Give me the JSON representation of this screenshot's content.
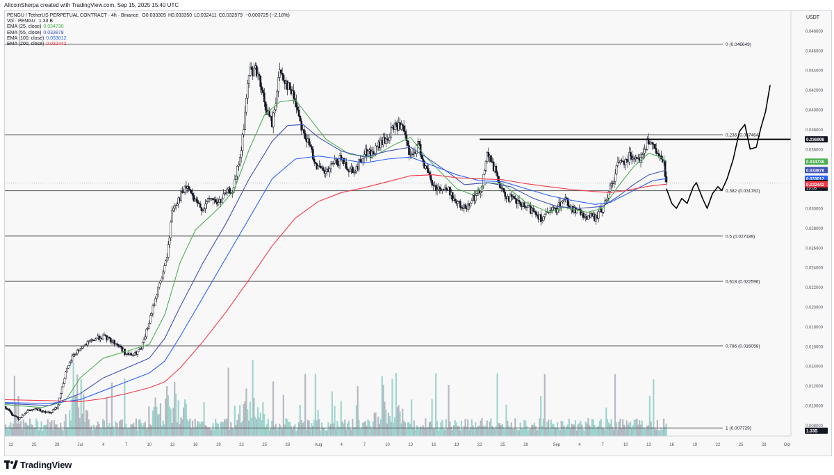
{
  "byline": "AltcoinSherpa created with TradingView.com, Sep 15, 2025 15:40 UTC",
  "footer": {
    "brand": "TradingView"
  },
  "legend": {
    "symbol_line": "PENGU / TetherUS PERPETUAL CONTRACT · 4h · Binance",
    "ohlc": [
      {
        "key": "O",
        "value": "0.033305"
      },
      {
        "key": "H",
        "value": "0.033350"
      },
      {
        "key": "L",
        "value": "0.032411"
      },
      {
        "key": "C",
        "value": "0.032579"
      },
      {
        "key": "",
        "value": "−0.000725 (−2.18%)"
      }
    ],
    "vol": {
      "label": "Vol · PENGU",
      "value": "1.33 B"
    },
    "emas": [
      {
        "label": "EMA (25, close)",
        "value": "0.034738",
        "color": "#4caf50"
      },
      {
        "label": "EMA (55, close)",
        "value": "0.033878",
        "color": "#3f51b5"
      },
      {
        "label": "EMA (100, close)",
        "value": "0.033012",
        "color": "#2962ff"
      },
      {
        "label": "EMA (200, close)",
        "value": "0.032442",
        "color": "#f23645"
      }
    ]
  },
  "chart_data": {
    "type": "candlestick",
    "currency": "USDT",
    "ylim": [
      0.0069,
      0.05
    ],
    "y_ticks": [
      "0.048000",
      "0.046000",
      "0.044000",
      "0.042000",
      "0.040000",
      "0.038000",
      "0.036000",
      "0.034000",
      "0.032000",
      "0.030000",
      "0.028000",
      "0.026000",
      "0.024000",
      "0.022000",
      "0.020000",
      "0.018000",
      "0.016000",
      "0.014000",
      "0.012000",
      "0.010000",
      "0.008000"
    ],
    "x_ticks": [
      {
        "label": "22",
        "day": -9
      },
      {
        "label": "25",
        "day": -6
      },
      {
        "label": "28",
        "day": -3
      },
      {
        "label": "Jul",
        "day": 0
      },
      {
        "label": "4",
        "day": 3
      },
      {
        "label": "7",
        "day": 6
      },
      {
        "label": "10",
        "day": 9
      },
      {
        "label": "13",
        "day": 12
      },
      {
        "label": "16",
        "day": 15
      },
      {
        "label": "19",
        "day": 18
      },
      {
        "label": "22",
        "day": 21
      },
      {
        "label": "25",
        "day": 24
      },
      {
        "label": "28",
        "day": 27
      },
      {
        "label": "Aug",
        "day": 31
      },
      {
        "label": "4",
        "day": 34
      },
      {
        "label": "7",
        "day": 37
      },
      {
        "label": "10",
        "day": 40
      },
      {
        "label": "13",
        "day": 43
      },
      {
        "label": "16",
        "day": 46
      },
      {
        "label": "19",
        "day": 49
      },
      {
        "label": "22",
        "day": 52
      },
      {
        "label": "25",
        "day": 55
      },
      {
        "label": "28",
        "day": 58
      },
      {
        "label": "Sep",
        "day": 62
      },
      {
        "label": "4",
        "day": 65
      },
      {
        "label": "7",
        "day": 68
      },
      {
        "label": "10",
        "day": 71
      },
      {
        "label": "13",
        "day": 74
      },
      {
        "label": "16",
        "day": 77
      },
      {
        "label": "19",
        "day": 80
      },
      {
        "label": "22",
        "day": 83
      },
      {
        "label": "25",
        "day": 86
      },
      {
        "label": "28",
        "day": 89
      },
      {
        "label": "Oct",
        "day": 92
      }
    ],
    "x_range_days": [
      -9.8,
      92.5
    ],
    "last_day": 76.3,
    "close_path": [
      [
        -9.8,
        0.0099
      ],
      [
        -9,
        0.0092
      ],
      [
        -8,
        0.0087
      ],
      [
        -7,
        0.0094
      ],
      [
        -6,
        0.0096
      ],
      [
        -5,
        0.0095
      ],
      [
        -4,
        0.0093
      ],
      [
        -3,
        0.0098
      ],
      [
        -2,
        0.013
      ],
      [
        -1,
        0.015
      ],
      [
        0,
        0.0158
      ],
      [
        1,
        0.0163
      ],
      [
        2,
        0.0168
      ],
      [
        3,
        0.017
      ],
      [
        4,
        0.0166
      ],
      [
        5,
        0.0161
      ],
      [
        6,
        0.0152
      ],
      [
        7,
        0.0151
      ],
      [
        8,
        0.0158
      ],
      [
        9,
        0.0185
      ],
      [
        10,
        0.0215
      ],
      [
        11,
        0.024
      ],
      [
        11.5,
        0.0262
      ],
      [
        12,
        0.03
      ],
      [
        13,
        0.0312
      ],
      [
        14,
        0.0322
      ],
      [
        15,
        0.0305
      ],
      [
        16,
        0.03
      ],
      [
        17,
        0.031
      ],
      [
        18,
        0.0305
      ],
      [
        19,
        0.0315
      ],
      [
        20,
        0.032
      ],
      [
        21,
        0.036
      ],
      [
        22,
        0.044
      ],
      [
        23,
        0.044
      ],
      [
        24,
        0.0405
      ],
      [
        25,
        0.0385
      ],
      [
        26,
        0.044
      ],
      [
        27,
        0.0425
      ],
      [
        28,
        0.041
      ],
      [
        29,
        0.0378
      ],
      [
        30,
        0.036
      ],
      [
        31,
        0.034
      ],
      [
        32,
        0.0335
      ],
      [
        33,
        0.0345
      ],
      [
        34,
        0.035
      ],
      [
        35,
        0.034
      ],
      [
        36,
        0.034
      ],
      [
        37,
        0.0357
      ],
      [
        38,
        0.0355
      ],
      [
        39,
        0.0365
      ],
      [
        40,
        0.037
      ],
      [
        41,
        0.0385
      ],
      [
        42,
        0.038
      ],
      [
        43,
        0.035
      ],
      [
        44,
        0.0365
      ],
      [
        45,
        0.034
      ],
      [
        46,
        0.0322
      ],
      [
        47,
        0.032
      ],
      [
        48,
        0.0318
      ],
      [
        49,
        0.0305
      ],
      [
        50,
        0.03
      ],
      [
        51,
        0.031
      ],
      [
        52,
        0.0315
      ],
      [
        53,
        0.0355
      ],
      [
        54,
        0.0338
      ],
      [
        55,
        0.0315
      ],
      [
        56,
        0.031
      ],
      [
        57,
        0.0305
      ],
      [
        58,
        0.03
      ],
      [
        59,
        0.0298
      ],
      [
        60,
        0.029
      ],
      [
        61,
        0.0295
      ],
      [
        62,
        0.03
      ],
      [
        63,
        0.031
      ],
      [
        64,
        0.03
      ],
      [
        65,
        0.0295
      ],
      [
        66,
        0.0292
      ],
      [
        67,
        0.029
      ],
      [
        68,
        0.03
      ],
      [
        69,
        0.032
      ],
      [
        70,
        0.0345
      ],
      [
        71,
        0.035
      ],
      [
        72,
        0.0355
      ],
      [
        73,
        0.035
      ],
      [
        74,
        0.037
      ],
      [
        75,
        0.0355
      ],
      [
        76,
        0.0345
      ],
      [
        76.3,
        0.03258
      ]
    ],
    "series": [
      {
        "name": "EMA (25, close)",
        "last": 0.034738,
        "color": "#4caf50",
        "points": [
          [
            -9.8,
            0.0101
          ],
          [
            -5,
            0.0098
          ],
          [
            -2,
            0.0104
          ],
          [
            0,
            0.0128
          ],
          [
            3,
            0.0148
          ],
          [
            6,
            0.0155
          ],
          [
            9,
            0.0162
          ],
          [
            11,
            0.0192
          ],
          [
            13,
            0.0245
          ],
          [
            15,
            0.0278
          ],
          [
            18,
            0.03
          ],
          [
            20,
            0.0318
          ],
          [
            22,
            0.036
          ],
          [
            24,
            0.0395
          ],
          [
            26,
            0.0408
          ],
          [
            28,
            0.041
          ],
          [
            30,
            0.039
          ],
          [
            32,
            0.037
          ],
          [
            35,
            0.0355
          ],
          [
            38,
            0.0352
          ],
          [
            41,
            0.0365
          ],
          [
            43,
            0.0372
          ],
          [
            45,
            0.0352
          ],
          [
            47,
            0.0336
          ],
          [
            49,
            0.032
          ],
          [
            51,
            0.0314
          ],
          [
            53,
            0.0326
          ],
          [
            55,
            0.0325
          ],
          [
            58,
            0.0306
          ],
          [
            61,
            0.0296
          ],
          [
            63,
            0.0301
          ],
          [
            66,
            0.0296
          ],
          [
            68,
            0.03
          ],
          [
            70,
            0.0322
          ],
          [
            72,
            0.0342
          ],
          [
            74,
            0.0356
          ],
          [
            75.5,
            0.0352
          ],
          [
            76.3,
            0.034738
          ]
        ]
      },
      {
        "name": "EMA (55, close)",
        "last": 0.033878,
        "color": "#3f51b5",
        "points": [
          [
            -9.8,
            0.0102
          ],
          [
            -4,
            0.01
          ],
          [
            0,
            0.0112
          ],
          [
            3,
            0.0128
          ],
          [
            6,
            0.0138
          ],
          [
            9,
            0.0148
          ],
          [
            11,
            0.0168
          ],
          [
            13,
            0.02
          ],
          [
            16,
            0.0245
          ],
          [
            19,
            0.0285
          ],
          [
            22,
            0.033
          ],
          [
            25,
            0.0368
          ],
          [
            27,
            0.0384
          ],
          [
            29,
            0.0385
          ],
          [
            31,
            0.0372
          ],
          [
            34,
            0.0358
          ],
          [
            37,
            0.0352
          ],
          [
            40,
            0.0358
          ],
          [
            43,
            0.0362
          ],
          [
            45,
            0.0352
          ],
          [
            48,
            0.0336
          ],
          [
            50,
            0.0324
          ],
          [
            53,
            0.0326
          ],
          [
            56,
            0.0322
          ],
          [
            59,
            0.031
          ],
          [
            62,
            0.0302
          ],
          [
            65,
            0.03
          ],
          [
            68,
            0.0302
          ],
          [
            70,
            0.0312
          ],
          [
            72,
            0.0324
          ],
          [
            74,
            0.0334
          ],
          [
            76.3,
            0.033878
          ]
        ]
      },
      {
        "name": "EMA (100, close)",
        "last": 0.033012,
        "color": "#2962ff",
        "points": [
          [
            -9.8,
            0.0103
          ],
          [
            -4,
            0.0102
          ],
          [
            0,
            0.0106
          ],
          [
            3,
            0.0115
          ],
          [
            6,
            0.0124
          ],
          [
            9,
            0.0133
          ],
          [
            11,
            0.0145
          ],
          [
            13,
            0.017
          ],
          [
            16,
            0.021
          ],
          [
            19,
            0.025
          ],
          [
            22,
            0.029
          ],
          [
            25,
            0.033
          ],
          [
            28,
            0.035
          ],
          [
            31,
            0.0353
          ],
          [
            34,
            0.035
          ],
          [
            37,
            0.0346
          ],
          [
            40,
            0.035
          ],
          [
            43,
            0.0352
          ],
          [
            46,
            0.0343
          ],
          [
            49,
            0.0334
          ],
          [
            52,
            0.0328
          ],
          [
            55,
            0.0327
          ],
          [
            58,
            0.032
          ],
          [
            61,
            0.0313
          ],
          [
            64,
            0.0308
          ],
          [
            67,
            0.0304
          ],
          [
            69,
            0.0306
          ],
          [
            71,
            0.0314
          ],
          [
            73,
            0.0322
          ],
          [
            74.5,
            0.0328
          ],
          [
            76.3,
            0.033012
          ]
        ]
      },
      {
        "name": "EMA (200, close)",
        "last": 0.032442,
        "color": "#f23645",
        "points": [
          [
            -9.8,
            0.0106
          ],
          [
            -4,
            0.0105
          ],
          [
            0,
            0.0104
          ],
          [
            3,
            0.0107
          ],
          [
            6,
            0.0112
          ],
          [
            9,
            0.0118
          ],
          [
            11,
            0.0124
          ],
          [
            13,
            0.0138
          ],
          [
            16,
            0.0165
          ],
          [
            19,
            0.0195
          ],
          [
            22,
            0.0228
          ],
          [
            25,
            0.0262
          ],
          [
            28,
            0.029
          ],
          [
            31,
            0.0307
          ],
          [
            34,
            0.0316
          ],
          [
            37,
            0.0321
          ],
          [
            40,
            0.0327
          ],
          [
            43,
            0.0333
          ],
          [
            46,
            0.0334
          ],
          [
            49,
            0.0331
          ],
          [
            52,
            0.033
          ],
          [
            55,
            0.0329
          ],
          [
            58,
            0.0325
          ],
          [
            61,
            0.0322
          ],
          [
            64,
            0.0319
          ],
          [
            67,
            0.0317
          ],
          [
            69,
            0.0316
          ],
          [
            71,
            0.0318
          ],
          [
            73,
            0.0321
          ],
          [
            74.5,
            0.0323
          ],
          [
            76.3,
            0.032442
          ]
        ]
      }
    ],
    "fib_levels": [
      {
        "label": "0 (0.046649)",
        "price": 0.046649
      },
      {
        "label": "0.236 (0.037464)",
        "price": 0.037464
      },
      {
        "label": "0.382 (0.031782)",
        "price": 0.031782
      },
      {
        "label": "0.5 (0.027189)",
        "price": 0.027189
      },
      {
        "label": "0.618 (0.022596)",
        "price": 0.022596
      },
      {
        "label": "0.786 (0.016058)",
        "price": 0.016058
      },
      {
        "label": "1 (0.007729)",
        "price": 0.007729
      }
    ],
    "resistance_line": {
      "price": 0.036998,
      "start_day": 52
    },
    "drawn_projection": [
      [
        76.3,
        0.032
      ],
      [
        77,
        0.0305
      ],
      [
        77.6,
        0.03
      ],
      [
        78.3,
        0.031
      ],
      [
        79,
        0.0305
      ],
      [
        79.8,
        0.0322
      ],
      [
        80.2,
        0.0326
      ],
      [
        81,
        0.031
      ],
      [
        81.6,
        0.03
      ],
      [
        82.3,
        0.0315
      ],
      [
        83,
        0.0322
      ],
      [
        83.5,
        0.0318
      ],
      [
        84.2,
        0.033
      ],
      [
        85,
        0.035
      ],
      [
        85.8,
        0.0378
      ],
      [
        86.5,
        0.0385
      ],
      [
        87.2,
        0.036
      ],
      [
        88,
        0.0362
      ],
      [
        88.6,
        0.0382
      ],
      [
        89.2,
        0.0398
      ],
      [
        89.8,
        0.0425
      ]
    ],
    "price_labels": [
      {
        "text": "0.036998",
        "price": 0.036998,
        "bg": "#131722",
        "fg": "#ffffff"
      },
      {
        "text": "0.034738",
        "price": 0.034738,
        "bg": "#4caf50",
        "fg": "#ffffff"
      },
      {
        "text": "0.033878",
        "price": 0.033878,
        "bg": "#3f51b5",
        "fg": "#ffffff"
      },
      {
        "text": "0.033012",
        "price": 0.033012,
        "bg": "#2962ff",
        "fg": "#ffffff"
      },
      {
        "text": "0.032579",
        "price": 0.032579,
        "bg": "#131722",
        "fg": "#ffffff",
        "sub": "19:06"
      },
      {
        "text": "0.032442",
        "price": 0.032442,
        "bg": "#f23645",
        "fg": "#ffffff"
      },
      {
        "text": "1.33B",
        "price": 0.00745,
        "bg": "#131722",
        "fg": "#ffffff"
      }
    ],
    "volume_color": "#8fcfc8",
    "volume_color_down": "#a9aeb8",
    "colors": {
      "up": "#ffffff",
      "down": "#131722",
      "grid": "#e6e6e6",
      "fib_line": "#555555"
    }
  }
}
